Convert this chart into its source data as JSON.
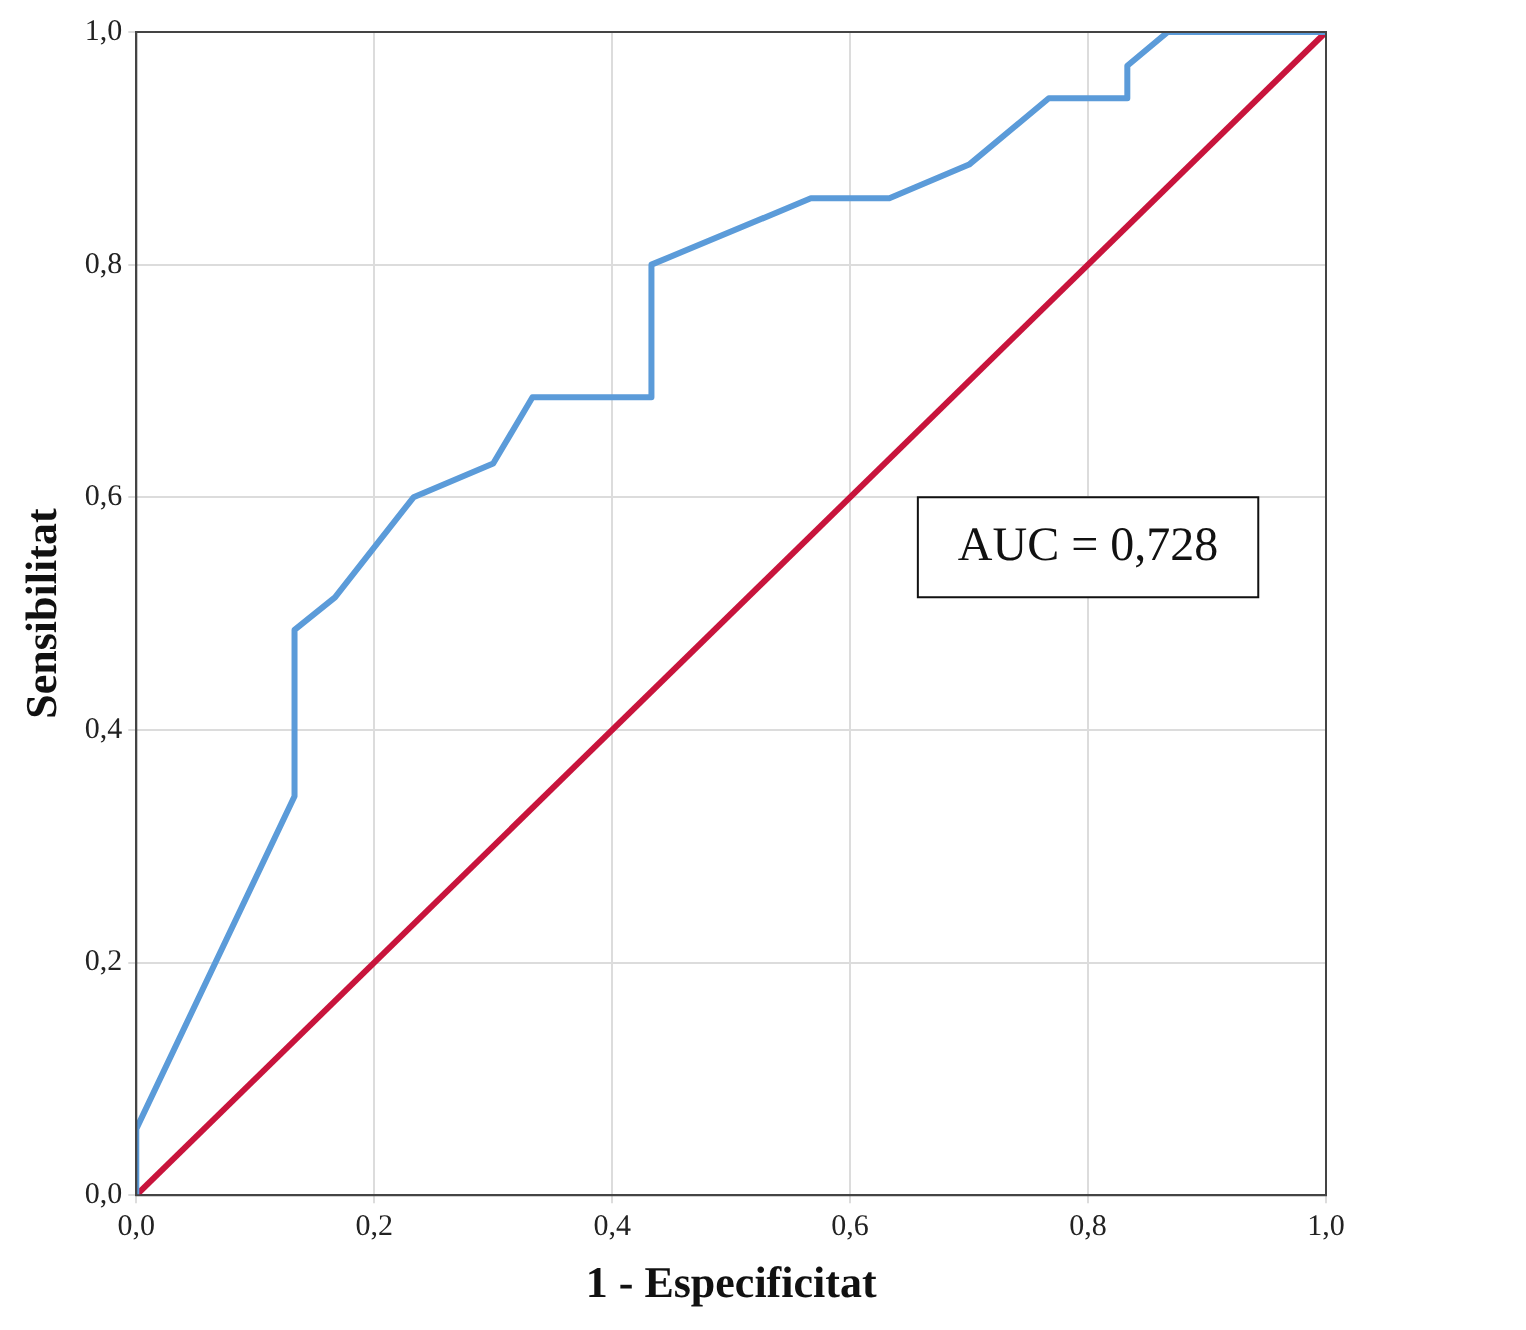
{
  "chart_data": {
    "type": "line",
    "xlabel": "1 - Especificitat",
    "ylabel": "Sensibilitat",
    "series": [
      {
        "color": "#5b9bd9",
        "x": [
          0,
          0,
          0.133,
          0.133,
          0.167,
          0.233,
          0.3,
          0.333,
          0.433,
          0.433,
          0.567,
          0.633,
          0.7,
          0.767,
          0.833,
          0.833,
          0.867,
          1
        ],
        "values": [
          0,
          0.057,
          0.343,
          0.486,
          0.514,
          0.6,
          0.629,
          0.686,
          0.686,
          0.8,
          0.857,
          0.857,
          0.886,
          0.943,
          0.943,
          0.971,
          1,
          1
        ]
      },
      {
        "color": "#c8143c",
        "x": [
          0,
          1
        ],
        "values": [
          0,
          1
        ]
      }
    ],
    "xlim": [
      0,
      1
    ],
    "ylim": [
      0,
      1
    ],
    "xticks": [
      {
        "value": 0,
        "label": "0,0"
      },
      {
        "value": 0.2,
        "label": "0,2"
      },
      {
        "value": 0.4,
        "label": "0,4"
      },
      {
        "value": 0.6,
        "label": "0,6"
      },
      {
        "value": 0.8,
        "label": "0,8"
      },
      {
        "value": 1,
        "label": "1,0"
      }
    ],
    "yticks": [
      {
        "value": 0,
        "label": "0,0"
      },
      {
        "value": 0.2,
        "label": "0,2"
      },
      {
        "value": 0.4,
        "label": "0,4"
      },
      {
        "value": 0.6,
        "label": "0,6"
      },
      {
        "value": 0.8,
        "label": "0,8"
      },
      {
        "value": 1,
        "label": "1,0"
      }
    ],
    "grid": true,
    "legend": false,
    "marker": "none",
    "line_style": "solid",
    "annotations": [
      "AUC = 0,728"
    ]
  }
}
